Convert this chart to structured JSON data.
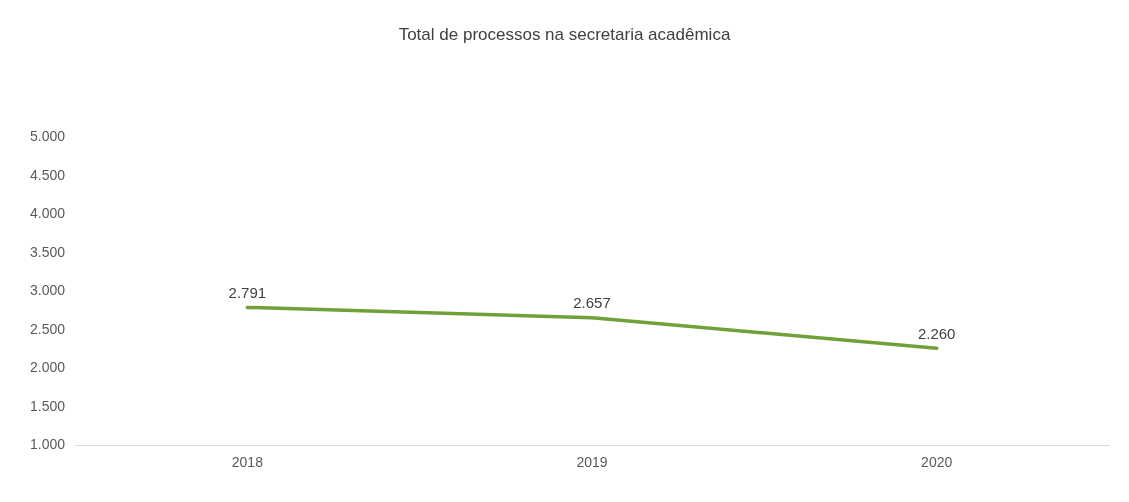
{
  "chart_data": {
    "type": "line",
    "title": "Total de processos na secretaria acadêmica",
    "categories": [
      "2018",
      "2019",
      "2020"
    ],
    "series": [
      {
        "color": "#70a138",
        "values": [
          2791,
          2657,
          2260
        ],
        "value_labels": [
          "2.791",
          "2.657",
          "2.260"
        ]
      }
    ],
    "ylim": [
      1000,
      5000
    ],
    "yticks": [
      {
        "value": 1000,
        "label": "1.000"
      },
      {
        "value": 1500,
        "label": "1.500"
      },
      {
        "value": 2000,
        "label": "2.000"
      },
      {
        "value": 2500,
        "label": "2.500"
      },
      {
        "value": 3000,
        "label": "3.000"
      },
      {
        "value": 3500,
        "label": "3.500"
      },
      {
        "value": 4000,
        "label": "4.000"
      },
      {
        "value": 4500,
        "label": "4.500"
      },
      {
        "value": 5000,
        "label": "5.000"
      }
    ],
    "grid": false,
    "legend": false,
    "marker": "none",
    "line_style": "solid"
  }
}
